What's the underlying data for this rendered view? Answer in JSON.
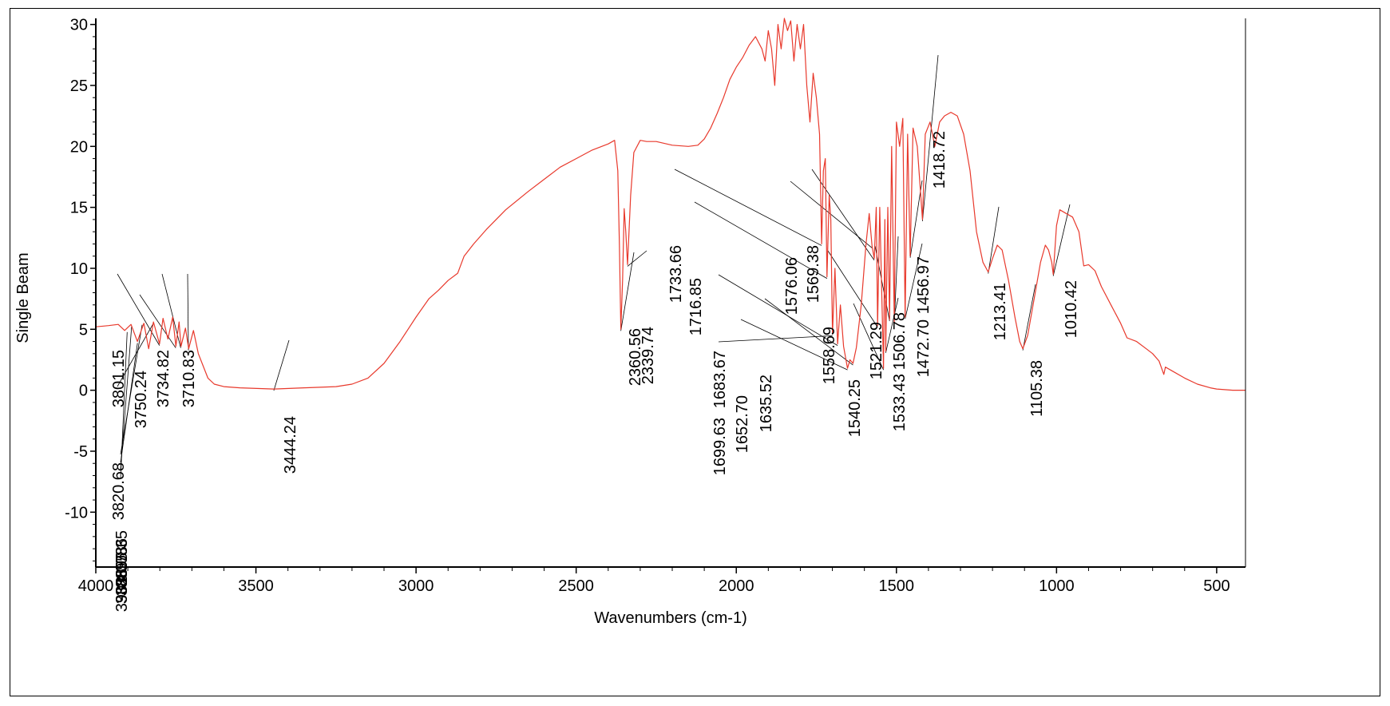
{
  "chart_data": {
    "type": "line",
    "title": "",
    "xlabel": "Wavenumbers (cm-1)",
    "ylabel": "Single Beam",
    "xlim": [
      4000,
      410
    ],
    "ylim": [
      -14.5,
      30.5
    ],
    "x_reversed": true,
    "grid": false,
    "line_color": "#e8392c",
    "x_ticks": [
      4000,
      3500,
      3000,
      2500,
      2000,
      1500,
      1000,
      500
    ],
    "y_ticks": [
      30,
      25,
      20,
      15,
      10,
      5,
      0,
      -5,
      -10
    ],
    "series": [
      {
        "points": [
          [
            4000,
            5.2
          ],
          [
            3960,
            5.3
          ],
          [
            3930,
            5.4
          ],
          [
            3910,
            4.9
          ],
          [
            3890,
            5.4
          ],
          [
            3870,
            4.0
          ],
          [
            3850,
            5.5
          ],
          [
            3835,
            3.4
          ],
          [
            3820,
            5.6
          ],
          [
            3801,
            3.8
          ],
          [
            3790,
            5.9
          ],
          [
            3775,
            4.2
          ],
          [
            3760,
            6.0
          ],
          [
            3750,
            3.6
          ],
          [
            3740,
            5.6
          ],
          [
            3734,
            3.6
          ],
          [
            3720,
            5.1
          ],
          [
            3710,
            3.4
          ],
          [
            3695,
            4.9
          ],
          [
            3680,
            3.0
          ],
          [
            3665,
            2.0
          ],
          [
            3650,
            1.0
          ],
          [
            3630,
            0.5
          ],
          [
            3600,
            0.3
          ],
          [
            3550,
            0.2
          ],
          [
            3444,
            0.1
          ],
          [
            3350,
            0.2
          ],
          [
            3250,
            0.3
          ],
          [
            3200,
            0.5
          ],
          [
            3150,
            1.0
          ],
          [
            3100,
            2.2
          ],
          [
            3050,
            4.0
          ],
          [
            3000,
            6.0
          ],
          [
            2960,
            7.5
          ],
          [
            2930,
            8.2
          ],
          [
            2900,
            9.0
          ],
          [
            2870,
            9.6
          ],
          [
            2850,
            11.0
          ],
          [
            2820,
            12.0
          ],
          [
            2780,
            13.2
          ],
          [
            2720,
            14.8
          ],
          [
            2650,
            16.3
          ],
          [
            2600,
            17.3
          ],
          [
            2550,
            18.3
          ],
          [
            2500,
            19.0
          ],
          [
            2450,
            19.7
          ],
          [
            2400,
            20.2
          ],
          [
            2380,
            20.5
          ],
          [
            2370,
            18.0
          ],
          [
            2365,
            12.0
          ],
          [
            2360.56,
            5.0
          ],
          [
            2355,
            9.0
          ],
          [
            2350,
            14.9
          ],
          [
            2345,
            13.0
          ],
          [
            2339.74,
            10.3
          ],
          [
            2330,
            16.0
          ],
          [
            2320,
            19.5
          ],
          [
            2300,
            20.5
          ],
          [
            2280,
            20.4
          ],
          [
            2250,
            20.4
          ],
          [
            2200,
            20.1
          ],
          [
            2150,
            20.0
          ],
          [
            2120,
            20.1
          ],
          [
            2100,
            20.6
          ],
          [
            2080,
            21.5
          ],
          [
            2060,
            22.7
          ],
          [
            2040,
            24.0
          ],
          [
            2020,
            25.5
          ],
          [
            2000,
            26.5
          ],
          [
            1980,
            27.3
          ],
          [
            1960,
            28.3
          ],
          [
            1940,
            29.0
          ],
          [
            1920,
            28.0
          ],
          [
            1910,
            27.0
          ],
          [
            1900,
            29.5
          ],
          [
            1890,
            28.0
          ],
          [
            1880,
            25.0
          ],
          [
            1870,
            30.0
          ],
          [
            1860,
            28.0
          ],
          [
            1850,
            30.5
          ],
          [
            1840,
            29.5
          ],
          [
            1830,
            30.3
          ],
          [
            1820,
            27.0
          ],
          [
            1810,
            30.0
          ],
          [
            1800,
            28.0
          ],
          [
            1790,
            30.0
          ],
          [
            1780,
            25.0
          ],
          [
            1770,
            22.0
          ],
          [
            1760,
            26.0
          ],
          [
            1750,
            24.0
          ],
          [
            1740,
            21.0
          ],
          [
            1733.66,
            12.0
          ],
          [
            1728,
            18.0
          ],
          [
            1722,
            19.0
          ],
          [
            1716.85,
            9.3
          ],
          [
            1710,
            16.0
          ],
          [
            1705,
            14.0
          ],
          [
            1699.63,
            4.6
          ],
          [
            1692,
            10.0
          ],
          [
            1683.67,
            3.8
          ],
          [
            1675,
            7.0
          ],
          [
            1665,
            3.6
          ],
          [
            1652.7,
            1.8
          ],
          [
            1645,
            2.5
          ],
          [
            1635.52,
            2.2
          ],
          [
            1625,
            3.5
          ],
          [
            1610,
            7.0
          ],
          [
            1595,
            12.0
          ],
          [
            1585,
            14.5
          ],
          [
            1576.06,
            11.8
          ],
          [
            1569.38,
            10.8
          ],
          [
            1563,
            15.0
          ],
          [
            1558.69,
            5.3
          ],
          [
            1552,
            15.0
          ],
          [
            1540.25,
            1.8
          ],
          [
            1536,
            14.0
          ],
          [
            1533.43,
            3.2
          ],
          [
            1527,
            15.0
          ],
          [
            1521.29,
            5.8
          ],
          [
            1515,
            20.0
          ],
          [
            1506.78,
            5.6
          ],
          [
            1500,
            22.0
          ],
          [
            1490,
            20.0
          ],
          [
            1480,
            22.3
          ],
          [
            1472.7,
            6.0
          ],
          [
            1465,
            21.0
          ],
          [
            1456.97,
            11.0
          ],
          [
            1448,
            21.5
          ],
          [
            1435,
            20.0
          ],
          [
            1418.72,
            14.0
          ],
          [
            1410,
            21.0
          ],
          [
            1395,
            22.0
          ],
          [
            1380,
            20.0
          ],
          [
            1365,
            22.0
          ],
          [
            1350,
            22.5
          ],
          [
            1330,
            22.8
          ],
          [
            1310,
            22.5
          ],
          [
            1290,
            21.0
          ],
          [
            1270,
            18.0
          ],
          [
            1250,
            13.0
          ],
          [
            1230,
            10.5
          ],
          [
            1213.41,
            9.7
          ],
          [
            1200,
            10.8
          ],
          [
            1185,
            11.9
          ],
          [
            1170,
            11.5
          ],
          [
            1150,
            9.0
          ],
          [
            1130,
            6.0
          ],
          [
            1115,
            4.0
          ],
          [
            1105.38,
            3.4
          ],
          [
            1090,
            4.5
          ],
          [
            1070,
            7.5
          ],
          [
            1050,
            10.5
          ],
          [
            1035,
            11.9
          ],
          [
            1025,
            11.5
          ],
          [
            1015,
            10.5
          ],
          [
            1010.42,
            9.5
          ],
          [
            1000,
            13.5
          ],
          [
            990,
            14.8
          ],
          [
            970,
            14.5
          ],
          [
            950,
            14.2
          ],
          [
            930,
            13.0
          ],
          [
            915,
            10.2
          ],
          [
            900,
            10.3
          ],
          [
            880,
            9.8
          ],
          [
            860,
            8.5
          ],
          [
            830,
            7.0
          ],
          [
            800,
            5.5
          ],
          [
            780,
            4.3
          ],
          [
            750,
            4.0
          ],
          [
            720,
            3.4
          ],
          [
            700,
            3.0
          ],
          [
            680,
            2.4
          ],
          [
            665,
            1.3
          ],
          [
            660,
            1.9
          ],
          [
            640,
            1.6
          ],
          [
            600,
            1.0
          ],
          [
            560,
            0.5
          ],
          [
            520,
            0.2
          ],
          [
            500,
            0.1
          ],
          [
            450,
            0.0
          ],
          [
            410,
            0.0
          ]
        ]
      }
    ],
    "peak_labels": [
      {
        "text": "3801.15",
        "x": 3801.15
      },
      {
        "text": "3820.68",
        "x": 3820.68
      },
      {
        "text": "3750.24",
        "x": 3750.24
      },
      {
        "text": "3734.82",
        "x": 3734.82
      },
      {
        "text": "3710.83",
        "x": 3710.83
      },
      {
        "text": "3444.24",
        "x": 3444.24
      },
      {
        "text": "2360.56",
        "x": 2360.56
      },
      {
        "text": "2339.74",
        "x": 2339.74
      },
      {
        "text": "1733.66",
        "x": 1733.66
      },
      {
        "text": "1716.85",
        "x": 1716.85
      },
      {
        "text": "1576.06",
        "x": 1576.06
      },
      {
        "text": "1569.38",
        "x": 1569.38
      },
      {
        "text": "1699.63",
        "x": 1699.63
      },
      {
        "text": "1683.67",
        "x": 1683.67
      },
      {
        "text": "1652.70",
        "x": 1652.7
      },
      {
        "text": "1635.52",
        "x": 1635.52
      },
      {
        "text": "1558.69",
        "x": 1558.69
      },
      {
        "text": "1540.25",
        "x": 1540.25
      },
      {
        "text": "1521.29",
        "x": 1521.29
      },
      {
        "text": "1533.43",
        "x": 1533.43
      },
      {
        "text": "1506.78",
        "x": 1506.78
      },
      {
        "text": "1472.70",
        "x": 1472.7
      },
      {
        "text": "1456.97",
        "x": 1456.97
      },
      {
        "text": "1418.72",
        "x": 1418.72
      },
      {
        "text": "1213.41",
        "x": 1213.41
      },
      {
        "text": "1105.38",
        "x": 1105.38
      },
      {
        "text": "1010.42",
        "x": 1010.42
      },
      {
        "text": "3902.07",
        "x": 3902.07
      },
      {
        "text": "3888.08",
        "x": 3888.08
      },
      {
        "text": "3869.86",
        "x": 3869.86
      },
      {
        "text": "3855.35",
        "x": 3855.35
      }
    ]
  }
}
